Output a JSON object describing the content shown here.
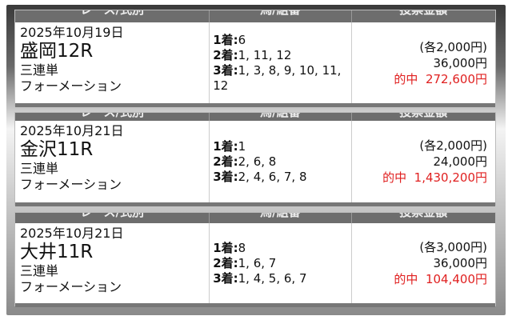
{
  "headers": [
    "レース/式別",
    "馬/組番",
    "投票金額"
  ],
  "entries": [
    {
      "date": "2025年10月19日",
      "race": "盛岡12R",
      "type": "三連単",
      "method": "フォーメーション",
      "picks": [
        {
          "label": "1着:",
          "nums": "6"
        },
        {
          "label": "2着:",
          "nums": "1, 11, 12"
        },
        {
          "label": "3着:",
          "nums": "1, 3, 8, 9, 10, 11, 12"
        }
      ],
      "unit": "(各2,000円)",
      "total": "36,000円",
      "hit_label": "的中",
      "payout": "272,600円"
    },
    {
      "date": "2025年10月21日",
      "race": "金沢11R",
      "type": "三連単",
      "method": "フォーメーション",
      "picks": [
        {
          "label": "1着:",
          "nums": "1"
        },
        {
          "label": "2着:",
          "nums": "2, 6, 8"
        },
        {
          "label": "3着:",
          "nums": "2, 4, 6, 7, 8"
        }
      ],
      "unit": "(各2,000円)",
      "total": "24,000円",
      "hit_label": "的中",
      "payout": "1,430,200円"
    },
    {
      "date": "2025年10月21日",
      "race": "大井11R",
      "type": "三連単",
      "method": "フォーメーション",
      "picks": [
        {
          "label": "1着:",
          "nums": "8"
        },
        {
          "label": "2着:",
          "nums": "1, 6, 7"
        },
        {
          "label": "3着:",
          "nums": "1, 4, 5, 6, 7"
        }
      ],
      "unit": "(各3,000円)",
      "total": "36,000円",
      "hit_label": "的中",
      "payout": "104,400円"
    }
  ],
  "colors": {
    "hit": "#e02020",
    "header_bg": "#6d6d6d"
  }
}
